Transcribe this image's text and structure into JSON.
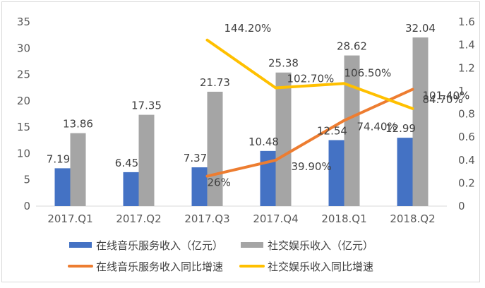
{
  "chart_data": {
    "type": "bar",
    "categories": [
      "2017.Q1",
      "2017.Q2",
      "2017.Q3",
      "2017.Q4",
      "2018.Q1",
      "2018.Q2"
    ],
    "series": [
      {
        "name": "在线音乐服务收入（亿元）",
        "type": "bar",
        "axis": "left",
        "color": "#4472c4",
        "values": [
          7.19,
          6.45,
          7.37,
          10.48,
          12.54,
          12.99
        ],
        "labels": [
          "7.19",
          "6.45",
          "7.37",
          "10.48",
          "12.54",
          "12.99"
        ]
      },
      {
        "name": "社交娱乐收入（亿元）",
        "type": "bar",
        "axis": "left",
        "color": "#a5a5a5",
        "values": [
          13.86,
          17.35,
          21.73,
          25.38,
          28.62,
          32.04
        ],
        "labels": [
          "13.86",
          "17.35",
          "21.73",
          "25.38",
          "28.62",
          "32.04"
        ]
      },
      {
        "name": "在线音乐服务收入同比增速",
        "type": "line",
        "axis": "right",
        "color": "#ed7d31",
        "values": [
          null,
          null,
          0.26,
          0.399,
          0.744,
          1.014
        ],
        "labels": [
          "",
          "",
          "26%",
          "39.90%",
          "74.40%",
          "101.40%"
        ]
      },
      {
        "name": "社交娱乐收入同比增速",
        "type": "line",
        "axis": "right",
        "color": "#ffc000",
        "values": [
          null,
          null,
          1.442,
          1.027,
          1.065,
          0.847
        ],
        "labels": [
          "",
          "",
          "144.20%",
          "102.70%",
          "106.50%",
          "84.70%"
        ]
      }
    ],
    "y_left": {
      "min": 0,
      "max": 35,
      "ticks": [
        "0",
        "5",
        "10",
        "15",
        "20",
        "25",
        "30",
        "35"
      ]
    },
    "y_right": {
      "min": 0,
      "max": 1.6,
      "ticks": [
        "0",
        "0.2",
        "0.4",
        "0.6",
        "0.8",
        "1",
        "1.2",
        "1.4",
        "1.6"
      ]
    },
    "legend_position": "bottom",
    "grid": false
  }
}
